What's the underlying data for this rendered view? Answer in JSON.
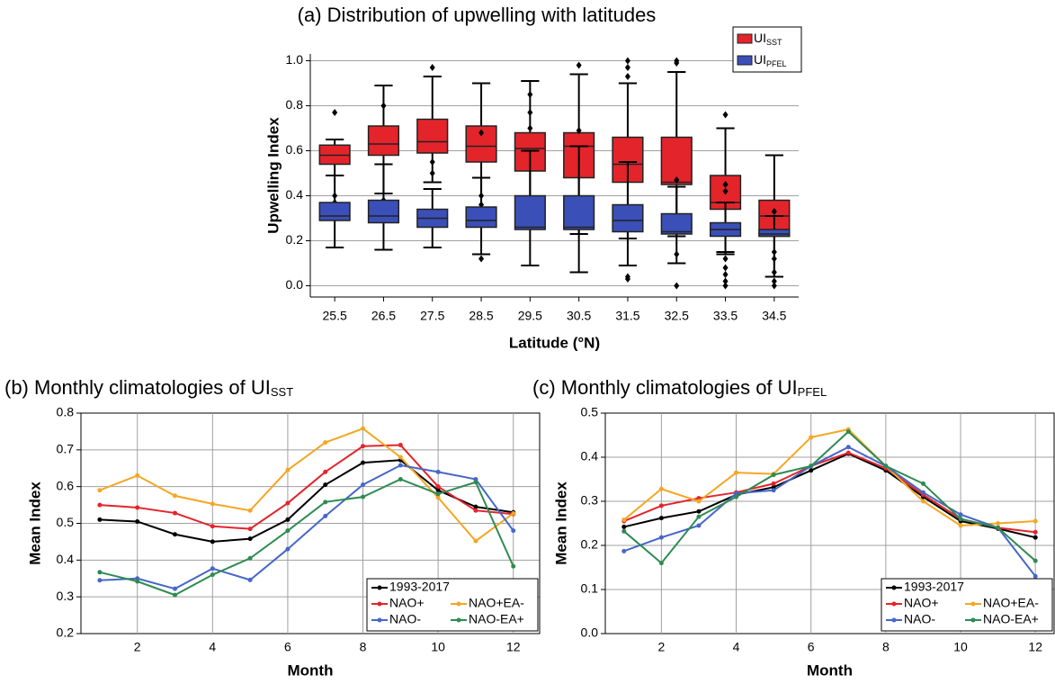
{
  "chart_data": [
    {
      "type": "box",
      "title": "(a) Distribution of upwelling with latitudes",
      "xlabel": "Latitude (°N)",
      "ylabel": "Upwelling Index",
      "categories": [
        "25.5",
        "26.5",
        "27.5",
        "28.5",
        "29.5",
        "30.5",
        "31.5",
        "32.5",
        "33.5",
        "34.5"
      ],
      "ylim": [
        -0.05,
        1.03
      ],
      "yticks": [
        {
          "value": 0,
          "label": "0.0"
        },
        0.2,
        0.4,
        0.6,
        0.8,
        {
          "value": 1,
          "label": "1.0"
        }
      ],
      "grid": true,
      "legend": "top-right",
      "series": [
        {
          "name": "UI",
          "subscript": "SST",
          "color": "#e3242b",
          "low": [
            0.49,
            0.41,
            0.46,
            0.31,
            0.26,
            0.23,
            0.21,
            0.22,
            0.14,
            0.04
          ],
          "q1": [
            0.54,
            0.58,
            0.59,
            0.55,
            0.51,
            0.48,
            0.46,
            0.45,
            0.34,
            0.22
          ],
          "median": [
            0.58,
            0.63,
            0.64,
            0.62,
            0.61,
            0.62,
            0.54,
            0.46,
            0.37,
            0.31
          ],
          "q3": [
            0.625,
            0.71,
            0.74,
            0.71,
            0.68,
            0.68,
            0.66,
            0.66,
            0.49,
            0.38
          ],
          "high": [
            0.65,
            0.89,
            0.93,
            0.9,
            0.91,
            0.94,
            0.9,
            0.95,
            0.7,
            0.58
          ],
          "outliers": [
            [
              0.77,
              0.4,
              0.37
            ],
            [
              0.8,
              0.38
            ],
            [
              0.97,
              0.55,
              0.5
            ],
            [
              0.68,
              0.4,
              0.36
            ],
            [
              0.77,
              0.7,
              0.85
            ],
            [
              0.98,
              0.69
            ],
            [
              1.0,
              0.97,
              0.93
            ],
            [
              1.0,
              0.99,
              0.47
            ],
            [
              0.76,
              0.45,
              0.42
            ],
            [
              0.33,
              0.15
            ]
          ]
        },
        {
          "name": "UI",
          "subscript": "PFEL",
          "color": "#3b4fb8",
          "low": [
            0.17,
            0.16,
            0.17,
            0.14,
            0.09,
            0.06,
            0.09,
            0.1,
            0.15,
            0.04
          ],
          "q1": [
            0.29,
            0.28,
            0.26,
            0.26,
            0.25,
            0.25,
            0.24,
            0.23,
            0.22,
            0.22
          ],
          "median": [
            0.31,
            0.31,
            0.3,
            0.29,
            0.26,
            0.26,
            0.29,
            0.24,
            0.25,
            0.23
          ],
          "q3": [
            0.37,
            0.38,
            0.34,
            0.35,
            0.4,
            0.4,
            0.36,
            0.32,
            0.28,
            0.25
          ],
          "high": [
            0.49,
            0.54,
            0.43,
            0.48,
            0.6,
            0.62,
            0.55,
            0.44,
            0.37,
            0.31
          ],
          "outliers": [
            [],
            [],
            [],
            [
              0.12
            ],
            [],
            [],
            [
              0.03,
              0.04
            ],
            [
              0,
              0.14
            ],
            [
              0,
              0.02,
              0.05,
              0.08,
              0.12
            ],
            [
              0,
              0.02,
              0.06,
              0.12
            ]
          ]
        }
      ]
    },
    {
      "type": "line",
      "title": "(b) Monthly climatologies of UI",
      "title_subscript": "SST",
      "xlabel": "Month",
      "ylabel": "Mean Index",
      "x": [
        1,
        2,
        3,
        4,
        5,
        6,
        7,
        8,
        9,
        10,
        11,
        12
      ],
      "xlim": [
        0.5,
        12.7
      ],
      "xticks": [
        2,
        4,
        6,
        8,
        10,
        12
      ],
      "ylim": [
        0.2,
        0.8
      ],
      "yticks": [
        0.2,
        0.3,
        0.4,
        0.5,
        0.6,
        0.7,
        0.8
      ],
      "grid": true,
      "legend": "bottom-right",
      "series": [
        {
          "name": "1993-2017",
          "color": "#000000",
          "values": [
            0.51,
            0.505,
            0.47,
            0.45,
            0.458,
            0.51,
            0.605,
            0.665,
            0.672,
            0.59,
            0.545,
            0.53
          ]
        },
        {
          "name": "NAO+",
          "color": "#e3242b",
          "values": [
            0.55,
            0.543,
            0.528,
            0.492,
            0.485,
            0.555,
            0.64,
            0.71,
            0.713,
            0.6,
            0.535,
            0.525
          ]
        },
        {
          "name": "NAO+EA-",
          "color": "#f5a623",
          "values": [
            0.59,
            0.63,
            0.575,
            0.553,
            0.535,
            0.645,
            0.72,
            0.758,
            0.68,
            0.57,
            0.452,
            0.527
          ]
        },
        {
          "name": "NAO-",
          "color": "#4666c8",
          "values": [
            0.345,
            0.35,
            0.322,
            0.377,
            0.346,
            0.43,
            0.52,
            0.605,
            0.658,
            0.64,
            0.62,
            0.48
          ]
        },
        {
          "name": "NAO-EA+",
          "color": "#2e8b50",
          "values": [
            0.367,
            0.342,
            0.305,
            0.36,
            0.405,
            0.48,
            0.558,
            0.572,
            0.62,
            0.58,
            0.612,
            0.383
          ]
        }
      ]
    },
    {
      "type": "line",
      "title": "(c) Monthly climatologies of UI",
      "title_subscript": "PFEL",
      "xlabel": "Month",
      "ylabel": "Mean Index",
      "x": [
        1,
        2,
        3,
        4,
        5,
        6,
        7,
        8,
        9,
        10,
        11,
        12
      ],
      "xlim": [
        0.5,
        12.5
      ],
      "xticks": [
        2,
        4,
        6,
        8,
        10,
        12
      ],
      "ylim": [
        0,
        0.5
      ],
      "yticks": [
        {
          "value": 0,
          "label": "0.0"
        },
        0.1,
        0.2,
        0.3,
        0.4,
        0.5
      ],
      "grid": true,
      "legend": "bottom-right",
      "series": [
        {
          "name": "1993-2017",
          "color": "#000000",
          "values": [
            0.242,
            0.262,
            0.277,
            0.315,
            0.332,
            0.37,
            0.408,
            0.37,
            0.31,
            0.255,
            0.238,
            0.218
          ]
        },
        {
          "name": "NAO+",
          "color": "#e3242b",
          "values": [
            0.255,
            0.29,
            0.307,
            0.32,
            0.34,
            0.38,
            0.41,
            0.375,
            0.315,
            0.26,
            0.24,
            0.23
          ]
        },
        {
          "name": "NAO+EA-",
          "color": "#f5a623",
          "values": [
            0.258,
            0.328,
            0.3,
            0.365,
            0.362,
            0.445,
            0.463,
            0.38,
            0.3,
            0.245,
            0.25,
            0.255
          ]
        },
        {
          "name": "NAO-",
          "color": "#4666c8",
          "values": [
            0.187,
            0.218,
            0.245,
            0.318,
            0.325,
            0.38,
            0.423,
            0.38,
            0.32,
            0.27,
            0.24,
            0.13
          ]
        },
        {
          "name": "NAO-EA+",
          "color": "#2e8b50",
          "values": [
            0.232,
            0.16,
            0.265,
            0.31,
            0.36,
            0.38,
            0.458,
            0.38,
            0.34,
            0.26,
            0.24,
            0.165
          ]
        }
      ]
    }
  ]
}
